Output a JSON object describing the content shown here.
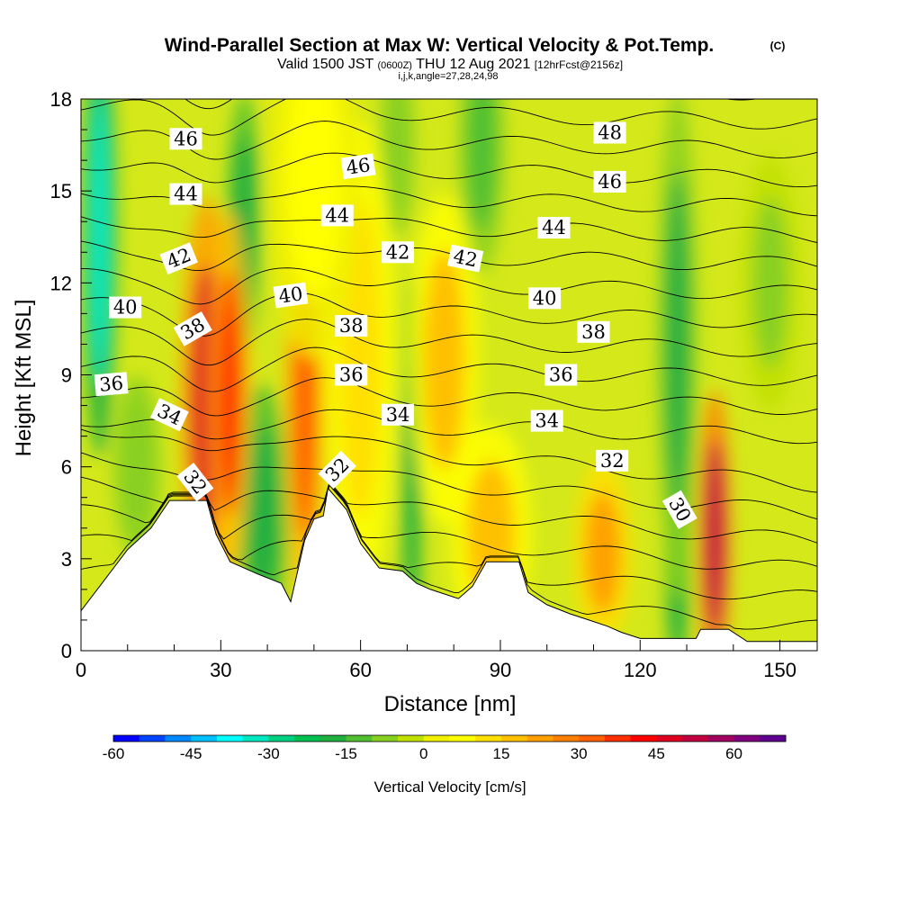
{
  "title": {
    "main": "Wind-Parallel Section at Max W: Vertical Velocity & Pot.Temp.",
    "main_suffix": "(C)",
    "valid_prefix": "Valid 1500 JST",
    "valid_zulu": "(0600Z)",
    "valid_date": "THU 12 Aug 2021",
    "forecast": "[12hrFcst@2156z]",
    "indices": "i,j,k,angle=27,28,24,98"
  },
  "chart_data": {
    "type": "contour",
    "xlabel": "Distance [nm]",
    "ylabel": "Height [Kft MSL]",
    "xlim": [
      0,
      158
    ],
    "ylim": [
      0,
      18
    ],
    "xticks": [
      0,
      30,
      60,
      90,
      120,
      150
    ],
    "yticks": [
      0,
      3,
      6,
      9,
      12,
      15,
      18
    ],
    "colorbar": {
      "label": "Vertical Velocity [cm/s]",
      "min": -60,
      "max": 70,
      "step": 5,
      "tick_values": [
        -60,
        -45,
        -30,
        -15,
        0,
        15,
        30,
        45,
        60
      ],
      "colors": [
        "#0000ff",
        "#0044ff",
        "#0088ff",
        "#00c0ff",
        "#00ffff",
        "#00e8c0",
        "#00d080",
        "#00c050",
        "#20b040",
        "#50c030",
        "#88d020",
        "#c0e000",
        "#f0f000",
        "#ffff00",
        "#ffe000",
        "#ffc000",
        "#ffa000",
        "#ff8000",
        "#ff6000",
        "#ff3000",
        "#ff0000",
        "#e00020",
        "#c00040",
        "#a00060",
        "#800080",
        "#600090"
      ]
    },
    "terrain_kft": [
      [
        0,
        1.3
      ],
      [
        5,
        2.3
      ],
      [
        10,
        3.3
      ],
      [
        15,
        4.0
      ],
      [
        19,
        4.9
      ],
      [
        27,
        4.9
      ],
      [
        29,
        3.8
      ],
      [
        32,
        2.9
      ],
      [
        38,
        2.5
      ],
      [
        43,
        2.2
      ],
      [
        45,
        1.6
      ],
      [
        48,
        3.6
      ],
      [
        50,
        4.3
      ],
      [
        52,
        4.4
      ],
      [
        53,
        5.3
      ],
      [
        57,
        4.6
      ],
      [
        60,
        3.5
      ],
      [
        64,
        2.7
      ],
      [
        69,
        2.6
      ],
      [
        72,
        2.2
      ],
      [
        75,
        2.0
      ],
      [
        81,
        1.7
      ],
      [
        84,
        2.1
      ],
      [
        87,
        2.9
      ],
      [
        94,
        2.9
      ],
      [
        96,
        1.9
      ],
      [
        100,
        1.5
      ],
      [
        105,
        1.2
      ],
      [
        109,
        1.0
      ],
      [
        113,
        0.8
      ],
      [
        116,
        0.6
      ],
      [
        120,
        0.4
      ],
      [
        132,
        0.4
      ],
      [
        133,
        0.7
      ],
      [
        139,
        0.7
      ],
      [
        143,
        0.3
      ],
      [
        158,
        0.3
      ]
    ],
    "updrafts": [
      {
        "x": 27,
        "y": 8.2,
        "rx": 4.5,
        "ry": 5.5,
        "value": 45
      },
      {
        "x": 32,
        "y": 8.4,
        "rx": 3.5,
        "ry": 5.0,
        "value": 35
      },
      {
        "x": 48,
        "y": 8.0,
        "rx": 3.5,
        "ry": 5.5,
        "value": 30
      },
      {
        "x": 78,
        "y": 9.5,
        "rx": 6.0,
        "ry": 4.5,
        "value": 15
      },
      {
        "x": 136,
        "y": 3.7,
        "rx": 2.8,
        "ry": 4.0,
        "value": 50
      },
      {
        "x": 88,
        "y": 3.8,
        "rx": 7.0,
        "ry": 3.0,
        "value": 15
      },
      {
        "x": 112,
        "y": 3.2,
        "rx": 5.0,
        "ry": 2.5,
        "value": 20
      },
      {
        "x": 60,
        "y": 9.5,
        "rx": 6.0,
        "ry": 6.5,
        "value": 10
      },
      {
        "x": 50,
        "y": 15.5,
        "rx": 8.0,
        "ry": 5.0,
        "value": 8
      }
    ],
    "downdrafts": [
      {
        "x": 4,
        "y": 13.5,
        "rx": 3.0,
        "ry": 6.0,
        "value": -35
      },
      {
        "x": 39,
        "y": 4.5,
        "rx": 4.5,
        "ry": 3.5,
        "value": -20
      },
      {
        "x": 35,
        "y": 14.0,
        "rx": 3.0,
        "ry": 3.5,
        "value": -20
      },
      {
        "x": 71,
        "y": 5.0,
        "rx": 1.8,
        "ry": 6.0,
        "value": -20
      },
      {
        "x": 86,
        "y": 16.5,
        "rx": 4.0,
        "ry": 3.5,
        "value": -15
      },
      {
        "x": 128,
        "y": 2.5,
        "rx": 2.2,
        "ry": 3.0,
        "value": -20
      },
      {
        "x": 128,
        "y": 10.0,
        "rx": 3.5,
        "ry": 7.0,
        "value": -18
      },
      {
        "x": 68,
        "y": 16.5,
        "rx": 3.0,
        "ry": 2.5,
        "value": -10
      },
      {
        "x": 12,
        "y": 6.0,
        "rx": 4.0,
        "ry": 2.5,
        "value": -10
      },
      {
        "x": 148,
        "y": 12.0,
        "rx": 5.0,
        "ry": 3.5,
        "value": -8
      }
    ],
    "theta_levels": [
      30,
      31,
      32,
      33,
      34,
      35,
      36,
      37,
      38,
      39,
      40,
      41,
      42,
      43,
      44,
      45,
      46,
      47,
      48
    ],
    "contour_labels": [
      {
        "text": "46",
        "x": 22.5,
        "y": 16.7,
        "angle": 0
      },
      {
        "text": "44",
        "x": 22.5,
        "y": 14.9,
        "angle": 0
      },
      {
        "text": "42",
        "x": 21.0,
        "y": 12.8,
        "angle": -22
      },
      {
        "text": "40",
        "x": 9.5,
        "y": 11.2,
        "angle": 0
      },
      {
        "text": "38",
        "x": 24.0,
        "y": 10.5,
        "angle": -30
      },
      {
        "text": "36",
        "x": 6.5,
        "y": 8.7,
        "angle": -5
      },
      {
        "text": "34",
        "x": 19.0,
        "y": 7.7,
        "angle": 25
      },
      {
        "text": "32",
        "x": 24.5,
        "y": 5.5,
        "angle": 52
      },
      {
        "text": "46",
        "x": 59.5,
        "y": 15.8,
        "angle": -8
      },
      {
        "text": "44",
        "x": 55.0,
        "y": 14.2,
        "angle": 0
      },
      {
        "text": "42",
        "x": 68.0,
        "y": 13.0,
        "angle": 0
      },
      {
        "text": "40",
        "x": 45.0,
        "y": 11.6,
        "angle": -8
      },
      {
        "text": "38",
        "x": 58.0,
        "y": 10.6,
        "angle": 0
      },
      {
        "text": "36",
        "x": 58.0,
        "y": 9.0,
        "angle": 0
      },
      {
        "text": "34",
        "x": 68.0,
        "y": 7.7,
        "angle": 0
      },
      {
        "text": "32",
        "x": 55.0,
        "y": 5.9,
        "angle": -45
      },
      {
        "text": "42",
        "x": 82.5,
        "y": 12.8,
        "angle": 12
      },
      {
        "text": "48",
        "x": 113.5,
        "y": 16.9,
        "angle": 0
      },
      {
        "text": "46",
        "x": 113.5,
        "y": 15.3,
        "angle": 0
      },
      {
        "text": "44",
        "x": 101.5,
        "y": 13.8,
        "angle": 0
      },
      {
        "text": "40",
        "x": 99.5,
        "y": 11.5,
        "angle": 0
      },
      {
        "text": "38",
        "x": 110.0,
        "y": 10.4,
        "angle": 0
      },
      {
        "text": "36",
        "x": 103.0,
        "y": 9.0,
        "angle": 0
      },
      {
        "text": "34",
        "x": 100.0,
        "y": 7.5,
        "angle": 0
      },
      {
        "text": "32",
        "x": 114.0,
        "y": 6.2,
        "angle": 0
      },
      {
        "text": "30",
        "x": 128.5,
        "y": 4.6,
        "angle": 60
      }
    ]
  }
}
